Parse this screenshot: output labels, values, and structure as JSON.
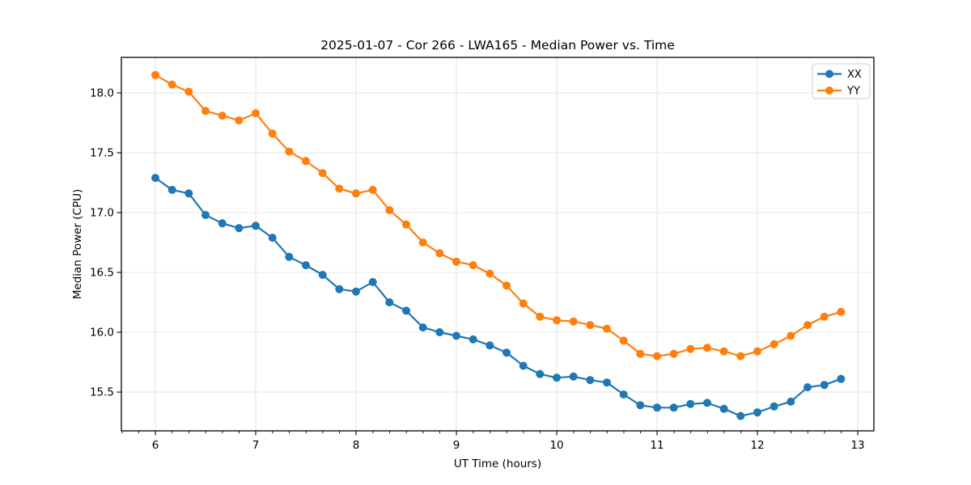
{
  "figure": {
    "background": "#ffffff"
  },
  "chart_data": {
    "type": "line",
    "title": "2025-01-07 - Cor 266 - LWA165 - Median Power vs. Time",
    "xlabel": "UT Time (hours)",
    "ylabel": "Median Power (CPU)",
    "xlim": [
      5.661,
      13.161
    ],
    "ylim": [
      15.176,
      18.297
    ],
    "x_ticks": [
      6,
      7,
      8,
      9,
      10,
      11,
      12,
      13
    ],
    "x_minor_step": 0.1667,
    "y_ticks": [
      15.5,
      16.0,
      16.5,
      17.0,
      17.5,
      18.0
    ],
    "grid": true,
    "grid_color": "#e4e4e4",
    "legend_position": "upper right",
    "x": [
      6.0,
      6.167,
      6.333,
      6.5,
      6.667,
      6.833,
      7.0,
      7.167,
      7.333,
      7.5,
      7.667,
      7.833,
      8.0,
      8.167,
      8.333,
      8.5,
      8.667,
      8.833,
      9.0,
      9.167,
      9.333,
      9.5,
      9.667,
      9.833,
      10.0,
      10.167,
      10.333,
      10.5,
      10.667,
      10.833,
      11.0,
      11.167,
      11.333,
      11.5,
      11.667,
      11.833,
      12.0,
      12.167,
      12.333,
      12.5,
      12.667,
      12.833
    ],
    "series": [
      {
        "name": "XX",
        "color": "#1f77b4",
        "values": [
          17.29,
          17.19,
          17.16,
          16.98,
          16.91,
          16.87,
          16.89,
          16.79,
          16.63,
          16.56,
          16.48,
          16.36,
          16.34,
          16.42,
          16.25,
          16.18,
          16.04,
          16.0,
          15.97,
          15.94,
          15.89,
          15.83,
          15.72,
          15.65,
          15.62,
          15.63,
          15.6,
          15.58,
          15.48,
          15.39,
          15.37,
          15.37,
          15.4,
          15.41,
          15.36,
          15.3,
          15.33,
          15.38,
          15.42,
          15.54,
          15.56,
          15.61
        ]
      },
      {
        "name": "YY",
        "color": "#ff7f0e",
        "values": [
          18.15,
          18.07,
          18.01,
          17.85,
          17.81,
          17.77,
          17.83,
          17.66,
          17.51,
          17.43,
          17.33,
          17.2,
          17.16,
          17.19,
          17.02,
          16.9,
          16.75,
          16.66,
          16.59,
          16.56,
          16.49,
          16.39,
          16.24,
          16.13,
          16.1,
          16.09,
          16.06,
          16.03,
          15.93,
          15.82,
          15.8,
          15.82,
          15.86,
          15.87,
          15.84,
          15.8,
          15.84,
          15.9,
          15.97,
          16.06,
          16.13,
          16.17
        ]
      }
    ]
  }
}
